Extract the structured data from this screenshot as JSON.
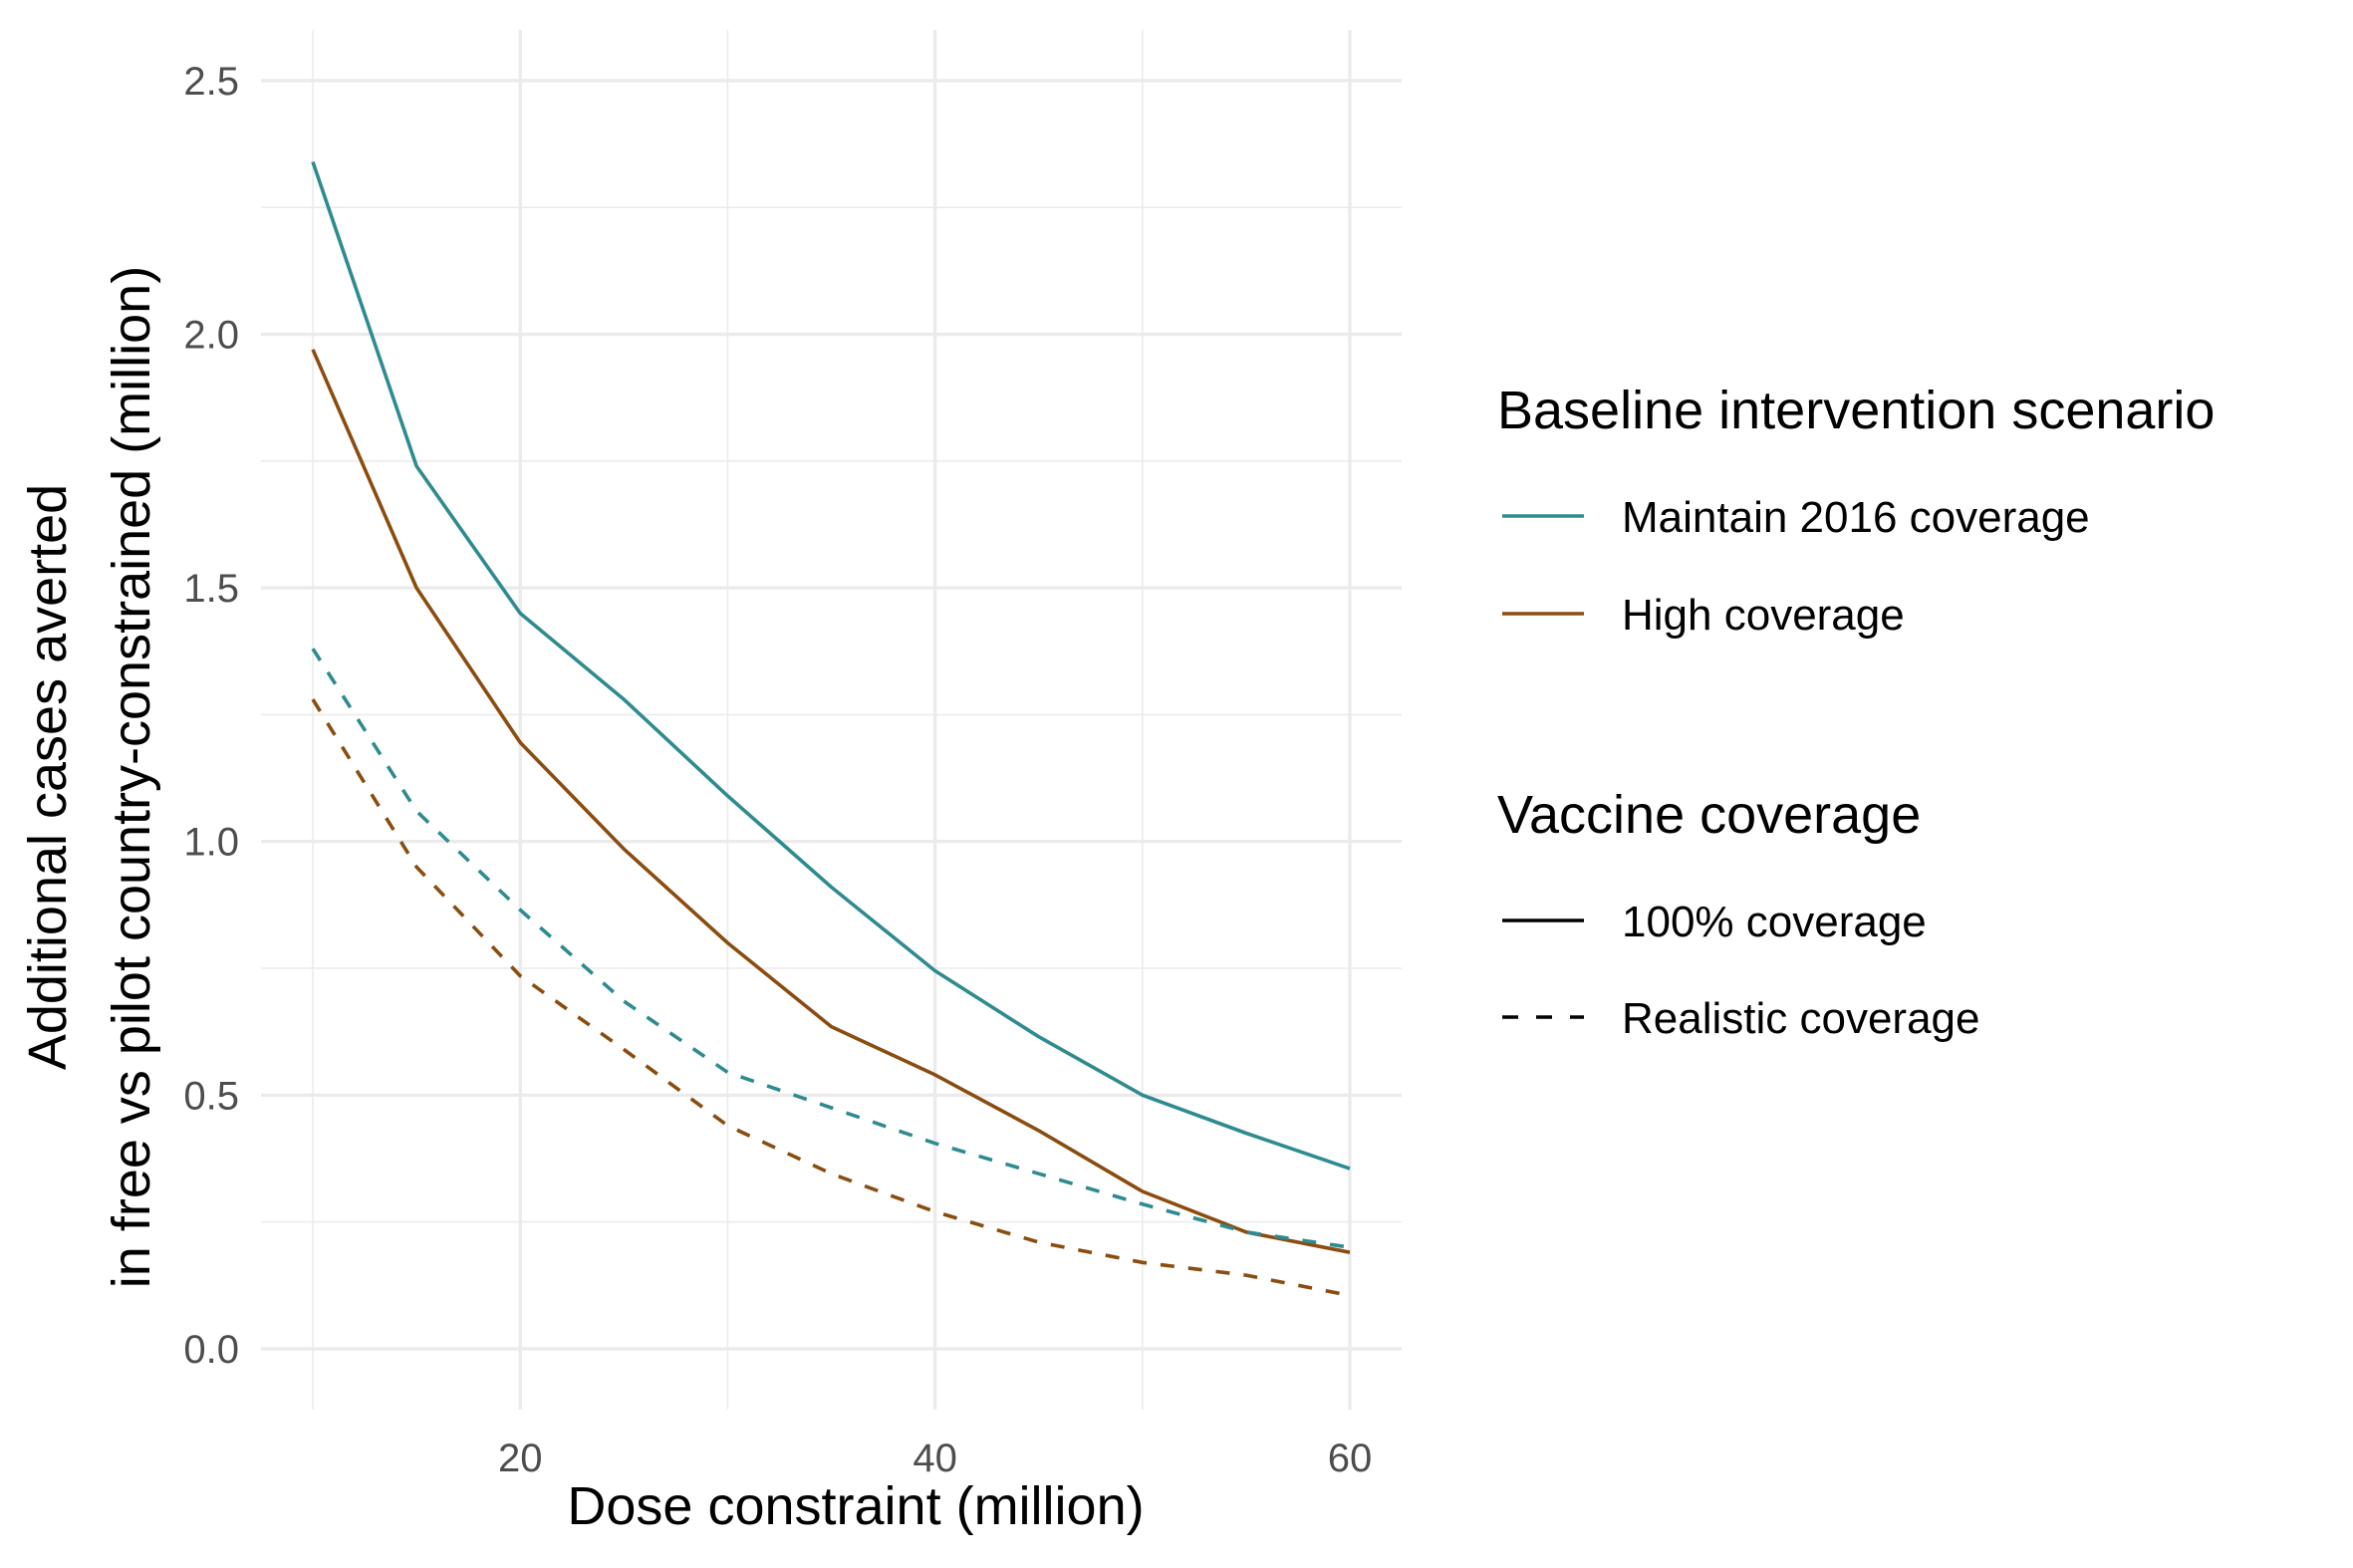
{
  "chart_data": {
    "type": "line",
    "xlabel": "Dose constraint (million)",
    "ylabel_line1": "Additional cases averted",
    "ylabel_line2": "in free vs pilot country-constrained (million)",
    "xlim": [
      7.5,
      62.5
    ],
    "ylim": [
      -0.12,
      2.6
    ],
    "x_ticks": [
      20,
      40,
      60
    ],
    "x_tick_labels": [
      "20",
      "40",
      "60"
    ],
    "y_ticks": [
      0.0,
      0.5,
      1.0,
      1.5,
      2.0,
      2.5
    ],
    "y_tick_labels": [
      "0.0",
      "0.5",
      "1.0",
      "1.5",
      "2.0",
      "2.5"
    ],
    "x_minor_ticks": [
      10,
      30,
      50
    ],
    "y_minor_ticks": [
      0.25,
      0.75,
      1.25,
      1.75,
      2.25
    ],
    "grid": true,
    "legend_placement": "right",
    "x": [
      10,
      15,
      20,
      25,
      30,
      35,
      40,
      45,
      50,
      55,
      60
    ],
    "series": [
      {
        "scenario": "Maintain 2016 coverage",
        "vaccine": "100% coverage",
        "color": "#2e8b8f",
        "dash": "solid",
        "values": [
          2.34,
          1.74,
          1.45,
          1.28,
          1.09,
          0.91,
          0.745,
          0.615,
          0.5,
          0.425,
          0.355
        ]
      },
      {
        "scenario": "High coverage",
        "vaccine": "100% coverage",
        "color": "#8b4c0f",
        "dash": "solid",
        "values": [
          1.97,
          1.5,
          1.195,
          0.985,
          0.8,
          0.635,
          0.54,
          0.43,
          0.31,
          0.23,
          0.19
        ]
      },
      {
        "scenario": "Maintain 2016 coverage",
        "vaccine": "Realistic coverage",
        "color": "#2e8b8f",
        "dash": "dashed",
        "values": [
          1.38,
          1.06,
          0.865,
          0.685,
          0.545,
          0.475,
          0.405,
          0.345,
          0.285,
          0.23,
          0.2
        ]
      },
      {
        "scenario": "High coverage",
        "vaccine": "Realistic coverage",
        "color": "#8b4c0f",
        "dash": "dashed",
        "values": [
          1.28,
          0.95,
          0.735,
          0.59,
          0.44,
          0.345,
          0.27,
          0.21,
          0.17,
          0.145,
          0.105
        ]
      }
    ],
    "legends": [
      {
        "title": "Baseline intervention scenario",
        "entries": [
          {
            "label": "Maintain 2016 coverage",
            "color": "#2e8b8f",
            "dash": "solid"
          },
          {
            "label": "High coverage",
            "color": "#8b4c0f",
            "dash": "solid"
          }
        ]
      },
      {
        "title": "Vaccine coverage",
        "entries": [
          {
            "label": "100% coverage",
            "color": "#000000",
            "dash": "solid"
          },
          {
            "label": "Realistic coverage",
            "color": "#000000",
            "dash": "dashed"
          }
        ]
      }
    ]
  }
}
